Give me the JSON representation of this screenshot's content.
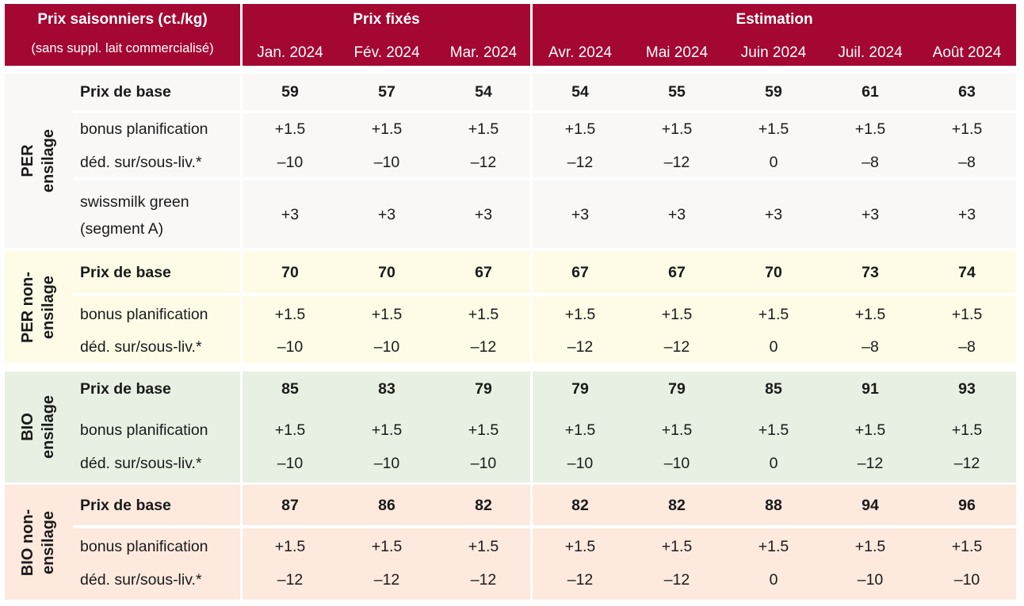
{
  "header": {
    "title": "Prix saisonniers (ct./kg)",
    "subtitle": "(sans suppl. lait commercialisé)",
    "fixed_label": "Prix fixés",
    "estimate_label": "Estimation",
    "months": [
      "Jan. 2024",
      "Fév. 2024",
      "Mar. 2024",
      "Avr. 2024",
      "Mai 2024",
      "Juin 2024",
      "Juil. 2024",
      "Août 2024"
    ]
  },
  "colors": {
    "header_bg": "#a30732",
    "per_ensilage_bg": "#f9f8f7",
    "per_non_ensilage_bg": "#fefce7",
    "bio_ensilage_bg": "#e7f0e2",
    "bio_non_ensilage_bg": "#fde9dd"
  },
  "groups": [
    {
      "label_line1": "PER",
      "label_line2": "ensilage",
      "rows": [
        {
          "label": "Prix de base",
          "values": [
            "59",
            "57",
            "54",
            "54",
            "55",
            "59",
            "61",
            "63"
          ]
        },
        {
          "label": "bonus planification",
          "values": [
            "+1.5",
            "+1.5",
            "+1.5",
            "+1.5",
            "+1.5",
            "+1.5",
            "+1.5",
            "+1.5"
          ]
        },
        {
          "label": "déd. sur/sous-liv.*",
          "values": [
            "–10",
            "–10",
            "–12",
            "–12",
            "–12",
            "0",
            "–8",
            "–8"
          ]
        },
        {
          "label_line1": "swissmilk green",
          "label_line2": "(segment A)",
          "values": [
            "+3",
            "+3",
            "+3",
            "+3",
            "+3",
            "+3",
            "+3",
            "+3"
          ]
        }
      ]
    },
    {
      "label_line1": "PER non-",
      "label_line2": "ensilage",
      "rows": [
        {
          "label": "Prix de base",
          "values": [
            "70",
            "70",
            "67",
            "67",
            "67",
            "70",
            "73",
            "74"
          ]
        },
        {
          "label": "bonus planification",
          "values": [
            "+1.5",
            "+1.5",
            "+1.5",
            "+1.5",
            "+1.5",
            "+1.5",
            "+1.5",
            "+1.5"
          ]
        },
        {
          "label": "déd. sur/sous-liv.*",
          "values": [
            "–10",
            "–10",
            "–12",
            "–12",
            "–12",
            "0",
            "–8",
            "–8"
          ]
        }
      ]
    },
    {
      "label_line1": "BIO",
      "label_line2": "ensilage",
      "rows": [
        {
          "label": "Prix de base",
          "values": [
            "85",
            "83",
            "79",
            "79",
            "79",
            "85",
            "91",
            "93"
          ]
        },
        {
          "label": "bonus planification",
          "values": [
            "+1.5",
            "+1.5",
            "+1.5",
            "+1.5",
            "+1.5",
            "+1.5",
            "+1.5",
            "+1.5"
          ]
        },
        {
          "label": "déd. sur/sous-liv.*",
          "values": [
            "–10",
            "–10",
            "–10",
            "–10",
            "–10",
            "0",
            "–12",
            "–12"
          ]
        }
      ]
    },
    {
      "label_line1": "BIO non-",
      "label_line2": "ensilage",
      "rows": [
        {
          "label": "Prix de base",
          "values": [
            "87",
            "86",
            "82",
            "82",
            "82",
            "88",
            "94",
            "96"
          ]
        },
        {
          "label": "bonus planification",
          "values": [
            "+1.5",
            "+1.5",
            "+1.5",
            "+1.5",
            "+1.5",
            "+1.5",
            "+1.5",
            "+1.5"
          ]
        },
        {
          "label": "déd. sur/sous-liv.*",
          "values": [
            "–12",
            "–12",
            "–12",
            "–12",
            "–12",
            "0",
            "–10",
            "–10"
          ]
        }
      ]
    }
  ]
}
